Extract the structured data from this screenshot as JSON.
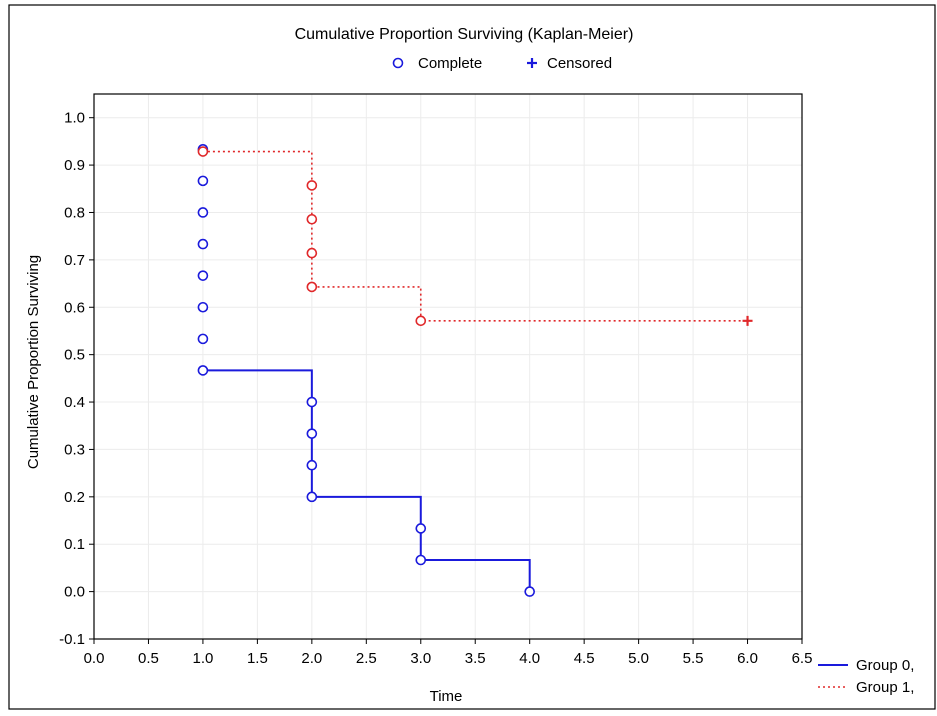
{
  "chart_data": {
    "type": "line",
    "subtype": "step",
    "title": "Cumulative Proportion Surviving (Kaplan-Meier)",
    "xlabel": "Time",
    "ylabel": "Cumulative Proportion Surviving",
    "xlim": [
      0.0,
      6.5
    ],
    "ylim": [
      -0.1,
      1.05
    ],
    "x_ticks": [
      "0.0",
      "0.5",
      "1.0",
      "1.5",
      "2.0",
      "2.5",
      "3.0",
      "3.5",
      "4.0",
      "4.5",
      "5.0",
      "5.5",
      "6.0",
      "6.5"
    ],
    "y_ticks": [
      "-0.1",
      "0.0",
      "0.1",
      "0.2",
      "0.3",
      "0.4",
      "0.5",
      "0.6",
      "0.7",
      "0.8",
      "0.9",
      "1.0"
    ],
    "grid": true,
    "marker_legend": {
      "complete": "Complete",
      "censored": "Censored"
    },
    "series": [
      {
        "name": "Group 0,",
        "color": "#1a1adc",
        "line_style": "solid",
        "steps": [
          {
            "x": 1.0,
            "y": 0.4667
          },
          {
            "x": 2.0,
            "y": 0.2
          },
          {
            "x": 3.0,
            "y": 0.0667
          },
          {
            "x": 4.0,
            "y": 0.0
          }
        ],
        "complete_points": [
          {
            "x": 1.0,
            "y": 0.9333
          },
          {
            "x": 1.0,
            "y": 0.8667
          },
          {
            "x": 1.0,
            "y": 0.8
          },
          {
            "x": 1.0,
            "y": 0.7333
          },
          {
            "x": 1.0,
            "y": 0.6667
          },
          {
            "x": 1.0,
            "y": 0.6
          },
          {
            "x": 1.0,
            "y": 0.5333
          },
          {
            "x": 1.0,
            "y": 0.4667
          },
          {
            "x": 2.0,
            "y": 0.4
          },
          {
            "x": 2.0,
            "y": 0.3333
          },
          {
            "x": 2.0,
            "y": 0.2667
          },
          {
            "x": 2.0,
            "y": 0.2
          },
          {
            "x": 3.0,
            "y": 0.1333
          },
          {
            "x": 3.0,
            "y": 0.0667
          },
          {
            "x": 4.0,
            "y": 0.0
          }
        ],
        "censored_points": []
      },
      {
        "name": "Group 1,",
        "color": "#e0282a",
        "line_style": "dotted",
        "steps": [
          {
            "x": 1.0,
            "y": 0.9286
          },
          {
            "x": 2.0,
            "y": 0.6429
          },
          {
            "x": 3.0,
            "y": 0.5714
          }
        ],
        "end_x": 6.0,
        "complete_points": [
          {
            "x": 1.0,
            "y": 0.9286
          },
          {
            "x": 2.0,
            "y": 0.8571
          },
          {
            "x": 2.0,
            "y": 0.7857
          },
          {
            "x": 2.0,
            "y": 0.7143
          },
          {
            "x": 2.0,
            "y": 0.6429
          },
          {
            "x": 3.0,
            "y": 0.5714
          }
        ],
        "censored_points": [
          {
            "x": 6.0,
            "y": 0.5714
          }
        ]
      }
    ],
    "legend_position": "bottom-right"
  }
}
